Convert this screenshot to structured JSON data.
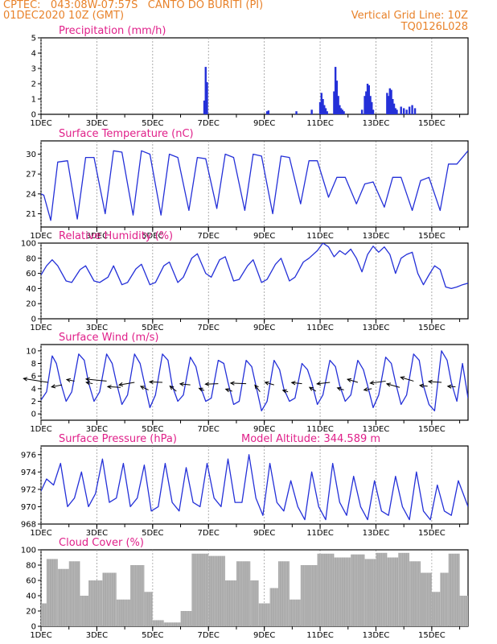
{
  "header": {
    "location": "CPTEC:   043:08W-07:57S   CANTO DO BURITI (PI)",
    "date": "01DEC2020 10Z (GMT)",
    "grid": "Vertical Grid Line: 10Z",
    "code": "TQ0126L028"
  },
  "colors": {
    "line": "#2430d8",
    "bar": "#2430d8",
    "cloud": "#a8a8a8",
    "title": "#e0208a",
    "header": "#e8822a"
  },
  "x_axis": {
    "day_range": [
      1,
      16.3
    ],
    "tick_days": [
      1,
      3,
      5,
      7,
      9,
      11,
      13,
      15
    ],
    "tick_labels": [
      "1DEC",
      "3DEC",
      "5DEC",
      "7DEC",
      "9DEC",
      "11DEC",
      "13DEC",
      "15DEC"
    ]
  },
  "chart_data": [
    {
      "id": "precip",
      "type": "bar",
      "title": "Precipitation (mm/h)",
      "ylim": [
        0,
        5
      ],
      "yticks": [
        0,
        1,
        2,
        3,
        4,
        5
      ],
      "x": [
        6.85,
        6.9,
        6.95,
        9.1,
        9.15,
        10.15,
        10.7,
        11.0,
        11.05,
        11.1,
        11.15,
        11.2,
        11.25,
        11.5,
        11.55,
        11.6,
        11.65,
        11.7,
        11.75,
        11.8,
        11.85,
        12.5,
        12.6,
        12.65,
        12.7,
        12.75,
        12.8,
        12.85,
        12.9,
        13.4,
        13.45,
        13.5,
        13.55,
        13.6,
        13.65,
        13.7,
        13.75,
        13.9,
        14.0,
        14.1,
        14.2,
        14.3,
        14.4
      ],
      "values": [
        0.9,
        3.1,
        2.1,
        0.2,
        0.25,
        0.2,
        0.3,
        0.8,
        1.4,
        1.0,
        0.6,
        0.4,
        0.2,
        1.5,
        3.1,
        2.2,
        1.2,
        0.6,
        0.4,
        0.3,
        0.2,
        0.3,
        1.2,
        1.5,
        2.0,
        1.9,
        1.2,
        0.8,
        0.3,
        1.4,
        1.2,
        1.7,
        1.6,
        1.0,
        0.7,
        0.4,
        0.3,
        0.5,
        0.4,
        0.3,
        0.5,
        0.6,
        0.4
      ]
    },
    {
      "id": "temp",
      "type": "line",
      "title": "Surface Temperature (nC)",
      "ylim": [
        19,
        32
      ],
      "yticks": [
        21,
        24,
        27,
        30
      ],
      "x": [
        1.0,
        1.1,
        1.25,
        1.35,
        1.6,
        1.95,
        2.3,
        2.6,
        2.9,
        3.3,
        3.6,
        3.9,
        4.3,
        4.6,
        4.9,
        5.3,
        5.6,
        5.9,
        6.3,
        6.6,
        6.9,
        7.3,
        7.6,
        7.9,
        8.3,
        8.6,
        8.9,
        9.3,
        9.6,
        9.9,
        10.3,
        10.6,
        10.9,
        11.3,
        11.6,
        11.9,
        12.3,
        12.6,
        12.9,
        13.3,
        13.6,
        13.9,
        14.3,
        14.6,
        14.9,
        15.3,
        15.6,
        15.9,
        16.3
      ],
      "values": [
        24.0,
        23.8,
        21.5,
        20.0,
        28.8,
        29.0,
        20.2,
        29.5,
        29.5,
        21.0,
        30.5,
        30.3,
        20.8,
        30.5,
        30.0,
        20.8,
        30.0,
        29.5,
        21.5,
        29.5,
        29.3,
        21.8,
        30.0,
        29.5,
        21.5,
        30.0,
        29.7,
        21.0,
        29.7,
        29.5,
        22.5,
        29.0,
        29.0,
        23.5,
        26.5,
        26.5,
        22.5,
        25.5,
        25.8,
        22.0,
        26.5,
        26.5,
        21.5,
        26.0,
        26.5,
        21.5,
        28.5,
        28.5,
        30.5
      ]
    },
    {
      "id": "rh",
      "type": "line",
      "title": "Relative Humidity (%)",
      "ylim": [
        0,
        100
      ],
      "yticks": [
        0,
        20,
        40,
        60,
        80,
        100
      ],
      "x": [
        1.0,
        1.2,
        1.4,
        1.6,
        1.9,
        2.1,
        2.4,
        2.6,
        2.9,
        3.1,
        3.4,
        3.6,
        3.9,
        4.1,
        4.4,
        4.6,
        4.9,
        5.1,
        5.4,
        5.6,
        5.9,
        6.1,
        6.4,
        6.6,
        6.9,
        7.1,
        7.4,
        7.6,
        7.9,
        8.1,
        8.4,
        8.6,
        8.9,
        9.1,
        9.4,
        9.6,
        9.9,
        10.1,
        10.4,
        10.6,
        10.9,
        11.1,
        11.3,
        11.5,
        11.7,
        11.9,
        12.1,
        12.3,
        12.5,
        12.7,
        12.9,
        13.1,
        13.3,
        13.5,
        13.7,
        13.9,
        14.1,
        14.3,
        14.5,
        14.7,
        14.9,
        15.1,
        15.3,
        15.5,
        15.7,
        15.9,
        16.1,
        16.3
      ],
      "values": [
        58,
        70,
        78,
        70,
        50,
        48,
        65,
        70,
        50,
        48,
        55,
        70,
        45,
        48,
        66,
        72,
        45,
        48,
        70,
        75,
        48,
        55,
        80,
        86,
        60,
        55,
        78,
        82,
        50,
        52,
        70,
        78,
        48,
        52,
        72,
        80,
        50,
        55,
        75,
        80,
        90,
        100,
        95,
        82,
        90,
        85,
        92,
        80,
        62,
        85,
        96,
        88,
        95,
        85,
        60,
        80,
        85,
        88,
        60,
        45,
        58,
        70,
        65,
        42,
        40,
        42,
        45,
        47
      ]
    },
    {
      "id": "wind",
      "type": "line",
      "title": "Surface Wind (m/s)",
      "ylim": [
        -1,
        11
      ],
      "yticks": [
        0,
        2,
        4,
        6,
        8,
        10
      ],
      "x": [
        1.0,
        1.2,
        1.4,
        1.55,
        1.7,
        1.9,
        2.1,
        2.35,
        2.55,
        2.7,
        2.9,
        3.1,
        3.35,
        3.55,
        3.7,
        3.9,
        4.1,
        4.35,
        4.55,
        4.7,
        4.9,
        5.1,
        5.35,
        5.55,
        5.7,
        5.9,
        6.1,
        6.35,
        6.55,
        6.7,
        6.9,
        7.1,
        7.35,
        7.55,
        7.7,
        7.9,
        8.1,
        8.35,
        8.55,
        8.7,
        8.9,
        9.1,
        9.35,
        9.55,
        9.7,
        9.9,
        10.1,
        10.35,
        10.55,
        10.7,
        10.9,
        11.1,
        11.35,
        11.55,
        11.7,
        11.9,
        12.1,
        12.35,
        12.55,
        12.7,
        12.9,
        13.1,
        13.35,
        13.55,
        13.7,
        13.9,
        14.1,
        14.35,
        14.55,
        14.7,
        14.9,
        15.1,
        15.35,
        15.55,
        15.7,
        15.9,
        16.1,
        16.3
      ],
      "values": [
        2.2,
        3.5,
        9.2,
        8.0,
        5.0,
        2.0,
        3.5,
        9.5,
        8.5,
        5.0,
        2.0,
        3.5,
        9.5,
        8.0,
        5.0,
        1.5,
        3.0,
        9.5,
        8.0,
        5.0,
        1.0,
        3.0,
        9.5,
        8.5,
        4.5,
        2.0,
        3.0,
        9.0,
        7.5,
        4.5,
        2.0,
        2.5,
        8.5,
        8.0,
        5.0,
        1.5,
        2.0,
        8.5,
        7.5,
        4.5,
        0.5,
        2.0,
        8.5,
        7.0,
        4.0,
        2.0,
        2.5,
        8.0,
        7.0,
        5.0,
        1.5,
        3.0,
        8.5,
        7.5,
        4.5,
        2.0,
        3.0,
        8.5,
        7.0,
        4.5,
        1.0,
        3.0,
        9.0,
        8.0,
        5.0,
        1.5,
        3.0,
        9.5,
        8.5,
        4.5,
        1.5,
        0.5,
        10.0,
        8.5,
        5.0,
        2.0,
        8.0,
        2.5
      ],
      "vectors": {
        "x": [
          1.25,
          1.75,
          2.2,
          2.85,
          3.35,
          3.85,
          4.35,
          4.85,
          5.35,
          5.85,
          6.35,
          6.85,
          7.35,
          7.85,
          8.35,
          8.85,
          9.35,
          9.85,
          10.35,
          10.85,
          11.35,
          11.85,
          12.35,
          12.85,
          13.35,
          13.85,
          14.35,
          14.85,
          15.35,
          15.85
        ],
        "y": [
          5.0,
          4.6,
          5.2,
          4.8,
          5.2,
          4.2,
          5.0,
          3.8,
          5.0,
          3.6,
          4.6,
          3.7,
          4.8,
          3.6,
          4.8,
          3.5,
          4.6,
          3.5,
          4.8,
          3.6,
          5.0,
          3.8,
          5.0,
          4.0,
          5.2,
          4.2,
          5.2,
          4.4,
          5.0,
          4.3
        ],
        "u": [
          -9.5,
          -4,
          -3,
          -2.5,
          -8,
          -5,
          -6,
          -3,
          -5,
          -2.5,
          -4,
          -2,
          -5,
          -2.5,
          -6,
          -2,
          -3.5,
          -2,
          -4,
          -2.5,
          -5,
          -2.5,
          -4,
          -3,
          -6,
          -5,
          -5,
          -3,
          -5,
          -3
        ],
        "v": [
          1.5,
          -0.8,
          0.6,
          0.5,
          0.8,
          0.3,
          -1.0,
          1.4,
          0.2,
          2.0,
          0.4,
          0.9,
          -0.2,
          0.8,
          0.2,
          2.6,
          1.0,
          0.6,
          0.4,
          1.5,
          -0.6,
          0.8,
          1.2,
          -0.5,
          -0.8,
          1.4,
          1.5,
          0.3,
          0.3,
          0.2
        ]
      }
    },
    {
      "id": "pres",
      "type": "line",
      "title": "Surface Pressure (hPa)",
      "annotation": "Model Altitude: 344.589 m",
      "ylim": [
        968,
        977
      ],
      "yticks": [
        968,
        970,
        972,
        974,
        976
      ],
      "x": [
        1.0,
        1.2,
        1.45,
        1.7,
        1.95,
        2.2,
        2.45,
        2.7,
        2.95,
        3.2,
        3.45,
        3.7,
        3.95,
        4.2,
        4.45,
        4.7,
        4.95,
        5.2,
        5.45,
        5.7,
        5.95,
        6.2,
        6.45,
        6.7,
        6.95,
        7.2,
        7.45,
        7.7,
        7.95,
        8.2,
        8.45,
        8.7,
        8.95,
        9.2,
        9.45,
        9.7,
        9.95,
        10.2,
        10.45,
        10.7,
        10.95,
        11.2,
        11.45,
        11.7,
        11.95,
        12.2,
        12.45,
        12.7,
        12.95,
        13.2,
        13.45,
        13.7,
        13.95,
        14.2,
        14.45,
        14.7,
        14.95,
        15.2,
        15.45,
        15.7,
        15.95,
        16.3
      ],
      "values": [
        971.8,
        973.2,
        972.5,
        975.0,
        970.0,
        971.0,
        974.0,
        970.0,
        971.5,
        975.5,
        970.5,
        971.0,
        975.0,
        970.0,
        971.0,
        974.8,
        969.5,
        970.0,
        975.0,
        970.5,
        969.5,
        974.5,
        970.5,
        970.0,
        975.0,
        971.0,
        970.0,
        975.5,
        970.5,
        970.5,
        976.0,
        971.0,
        969.0,
        975.0,
        970.5,
        969.5,
        973.0,
        970.0,
        968.5,
        974.0,
        970.0,
        968.5,
        975.0,
        970.5,
        969.0,
        973.5,
        970.0,
        968.5,
        973.0,
        969.5,
        969.0,
        973.5,
        970.0,
        968.5,
        974.0,
        969.5,
        968.5,
        972.5,
        969.5,
        969.0,
        973.0,
        970.0
      ]
    },
    {
      "id": "cloud",
      "type": "bar",
      "title": "Cloud Cover (%)",
      "ylim": [
        0,
        100
      ],
      "yticks": [
        0,
        20,
        40,
        60,
        80,
        100
      ],
      "segments": [
        [
          1.0,
          1.2,
          30
        ],
        [
          1.2,
          1.6,
          88
        ],
        [
          1.6,
          2.0,
          75
        ],
        [
          2.0,
          2.4,
          85
        ],
        [
          2.4,
          2.7,
          40
        ],
        [
          2.7,
          3.2,
          60
        ],
        [
          3.2,
          3.7,
          70
        ],
        [
          3.7,
          4.2,
          35
        ],
        [
          4.2,
          4.7,
          80
        ],
        [
          4.7,
          5.0,
          45
        ],
        [
          5.0,
          5.4,
          8
        ],
        [
          5.4,
          6.0,
          5
        ],
        [
          6.0,
          6.4,
          20
        ],
        [
          6.4,
          7.0,
          95
        ],
        [
          7.0,
          7.6,
          92
        ],
        [
          7.6,
          8.0,
          60
        ],
        [
          8.0,
          8.5,
          85
        ],
        [
          8.5,
          8.8,
          60
        ],
        [
          8.8,
          9.2,
          30
        ],
        [
          9.2,
          9.5,
          50
        ],
        [
          9.5,
          9.9,
          85
        ],
        [
          9.9,
          10.3,
          35
        ],
        [
          10.3,
          10.9,
          80
        ],
        [
          10.9,
          11.5,
          95
        ],
        [
          11.5,
          12.1,
          90
        ],
        [
          12.1,
          12.6,
          94
        ],
        [
          12.6,
          13.0,
          88
        ],
        [
          13.0,
          13.4,
          96
        ],
        [
          13.4,
          13.8,
          90
        ],
        [
          13.8,
          14.2,
          96
        ],
        [
          14.2,
          14.6,
          85
        ],
        [
          14.6,
          15.0,
          70
        ],
        [
          15.0,
          15.3,
          45
        ],
        [
          15.3,
          15.6,
          70
        ],
        [
          15.6,
          16.0,
          95
        ],
        [
          16.0,
          16.3,
          40
        ]
      ]
    }
  ]
}
